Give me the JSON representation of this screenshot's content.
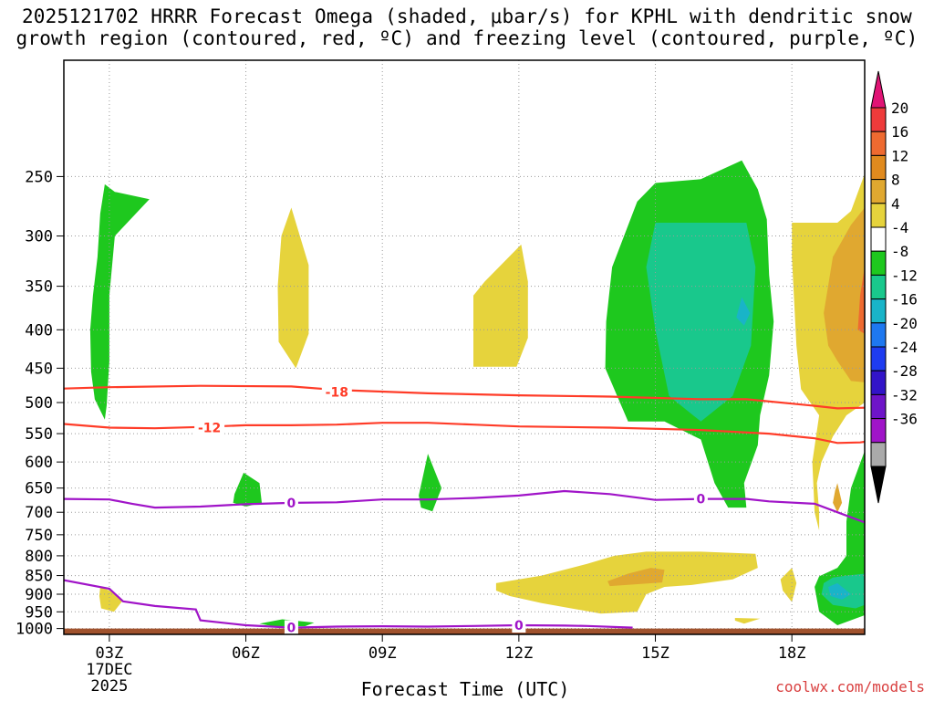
{
  "title": {
    "line1": "2025121702 HRRR Forecast Omega (shaded, μbar/s) for KPHL with dendritic snow",
    "line2": "growth region (contoured, red, ºC) and freezing level (contoured, purple, ºC)"
  },
  "credit": "coolwx.com/models",
  "chart_data": {
    "type": "contour",
    "xlabel": "Forecast Time (UTC)",
    "ylabel": "",
    "x_unit": "hour UTC",
    "x_range": [
      2.0,
      19.6
    ],
    "y_unit": "hPa",
    "y_range": [
      175,
      1018
    ],
    "y_scale": "log-pressure",
    "grid": true,
    "x_ticks": [
      {
        "value": 3,
        "label": "03Z",
        "sub1": "17DEC",
        "sub2": "2025"
      },
      {
        "value": 6,
        "label": "06Z"
      },
      {
        "value": 9,
        "label": "09Z"
      },
      {
        "value": 12,
        "label": "12Z"
      },
      {
        "value": 15,
        "label": "15Z"
      },
      {
        "value": 18,
        "label": "18Z"
      }
    ],
    "y_ticks": [
      {
        "value": 250,
        "label": "250"
      },
      {
        "value": 300,
        "label": "300"
      },
      {
        "value": 350,
        "label": "350"
      },
      {
        "value": 400,
        "label": "400"
      },
      {
        "value": 450,
        "label": "450"
      },
      {
        "value": 500,
        "label": "500"
      },
      {
        "value": 550,
        "label": "550"
      },
      {
        "value": 600,
        "label": "600"
      },
      {
        "value": 650,
        "label": "650"
      },
      {
        "value": 700,
        "label": "700"
      },
      {
        "value": 750,
        "label": "750"
      },
      {
        "value": 800,
        "label": "800"
      },
      {
        "value": 850,
        "label": "850"
      },
      {
        "value": 900,
        "label": "900"
      },
      {
        "value": 950,
        "label": "950"
      },
      {
        "value": 1000,
        "label": "1000"
      }
    ],
    "ground": {
      "color": "#a0522d",
      "p_top": 1000
    },
    "colorbar": {
      "labels": [
        "20",
        "16",
        "12",
        "8",
        "4",
        "-4",
        "-8",
        "-12",
        "-16",
        "-20",
        "-24",
        "-28",
        "-32",
        "-36"
      ],
      "colors": [
        "#e01475",
        "#ee3b3b",
        "#ee6a30",
        "#e08a1e",
        "#e0a830",
        "#e6d33c",
        "#ffffff",
        "#1ec81e",
        "#19c88c",
        "#19b4c8",
        "#1e78f0",
        "#1e3cf0",
        "#3214c8",
        "#6e14c8",
        "#a014c8",
        "#aaaaaa",
        "#000000"
      ]
    },
    "omega_regions": [
      {
        "level": "-4",
        "color": "#1ec81e",
        "points": [
          [
            2.9,
            527
          ],
          [
            2.68,
            495
          ],
          [
            2.6,
            455
          ],
          [
            2.58,
            400
          ],
          [
            2.64,
            360
          ],
          [
            2.74,
            320
          ],
          [
            2.8,
            280
          ],
          [
            2.9,
            256
          ],
          [
            3.12,
            262
          ],
          [
            3.88,
            268
          ],
          [
            3.12,
            300
          ],
          [
            3.0,
            360
          ],
          [
            3.0,
            440
          ],
          [
            2.94,
            505
          ]
        ]
      },
      {
        "level": "4",
        "color": "#e6d33c",
        "points": [
          [
            7.0,
            275
          ],
          [
            7.38,
            328
          ],
          [
            7.38,
            405
          ],
          [
            7.1,
            450
          ],
          [
            6.72,
            415
          ],
          [
            6.7,
            350
          ],
          [
            6.78,
            300
          ]
        ]
      },
      {
        "level": "4",
        "color": "#e6d33c",
        "points": [
          [
            11.0,
            448
          ],
          [
            11.95,
            448
          ],
          [
            12.2,
            410
          ],
          [
            12.2,
            345
          ],
          [
            12.05,
            308
          ],
          [
            11.25,
            345
          ],
          [
            11.0,
            360
          ]
        ]
      },
      {
        "level": "-4",
        "color": "#1ec81e",
        "points": [
          [
            16.9,
            238
          ],
          [
            17.25,
            260
          ],
          [
            17.45,
            285
          ],
          [
            17.5,
            338
          ],
          [
            17.6,
            390
          ],
          [
            17.5,
            460
          ],
          [
            17.3,
            520
          ],
          [
            17.25,
            570
          ],
          [
            16.95,
            640
          ],
          [
            17.0,
            690
          ],
          [
            16.6,
            690
          ],
          [
            16.3,
            640
          ],
          [
            16.0,
            560
          ],
          [
            15.2,
            530
          ],
          [
            14.4,
            530
          ],
          [
            13.9,
            450
          ],
          [
            13.92,
            390
          ],
          [
            14.05,
            330
          ],
          [
            14.6,
            270
          ],
          [
            15.0,
            255
          ],
          [
            16.0,
            252
          ]
        ]
      },
      {
        "level": "-8",
        "color": "#19c88c",
        "points": [
          [
            15.0,
            288
          ],
          [
            17.0,
            288
          ],
          [
            17.2,
            330
          ],
          [
            17.1,
            420
          ],
          [
            16.7,
            490
          ],
          [
            16.0,
            530
          ],
          [
            15.3,
            490
          ],
          [
            15.0,
            400
          ],
          [
            14.8,
            330
          ]
        ]
      },
      {
        "level": "-12",
        "color": "#19b4c8",
        "points": [
          [
            16.9,
            362
          ],
          [
            17.08,
            380
          ],
          [
            16.95,
            395
          ],
          [
            16.78,
            385
          ]
        ]
      },
      {
        "level": "4",
        "color": "#e6d33c",
        "points": [
          [
            18.0,
            288
          ],
          [
            19.0,
            288
          ],
          [
            19.3,
            278
          ],
          [
            19.6,
            248
          ],
          [
            19.6,
            500
          ],
          [
            19.2,
            520
          ],
          [
            18.9,
            555
          ],
          [
            18.65,
            600
          ],
          [
            18.55,
            640
          ],
          [
            18.6,
            700
          ],
          [
            18.6,
            740
          ],
          [
            18.5,
            700
          ],
          [
            18.45,
            600
          ],
          [
            18.6,
            520
          ],
          [
            18.2,
            480
          ],
          [
            18.1,
            420
          ],
          [
            18.0,
            320
          ]
        ]
      },
      {
        "level": "8",
        "color": "#e0a830",
        "points": [
          [
            18.7,
            380
          ],
          [
            18.9,
            320
          ],
          [
            19.3,
            290
          ],
          [
            19.6,
            275
          ],
          [
            19.6,
            470
          ],
          [
            19.3,
            468
          ],
          [
            19.0,
            440
          ],
          [
            18.8,
            420
          ]
        ]
      },
      {
        "level": "12",
        "color": "#ee6a30",
        "points": [
          [
            19.5,
            360
          ],
          [
            19.6,
            330
          ],
          [
            19.6,
            405
          ],
          [
            19.45,
            400
          ]
        ]
      },
      {
        "level": "8",
        "color": "#e0a830",
        "points": [
          [
            19.0,
            640
          ],
          [
            19.1,
            680
          ],
          [
            19.0,
            700
          ],
          [
            18.9,
            680
          ],
          [
            18.95,
            655
          ]
        ]
      },
      {
        "level": "-4",
        "color": "#1ec81e",
        "points": [
          [
            19.6,
            580
          ],
          [
            19.6,
            960
          ],
          [
            19.0,
            990
          ],
          [
            18.6,
            950
          ],
          [
            18.5,
            880
          ],
          [
            18.6,
            852
          ],
          [
            19.0,
            830
          ],
          [
            19.2,
            800
          ],
          [
            19.2,
            720
          ],
          [
            19.3,
            650
          ]
        ]
      },
      {
        "level": "-8",
        "color": "#19c88c",
        "points": [
          [
            19.2,
            850
          ],
          [
            19.6,
            845
          ],
          [
            19.6,
            930
          ],
          [
            19.4,
            940
          ],
          [
            18.9,
            930
          ],
          [
            18.65,
            900
          ],
          [
            18.7,
            870
          ],
          [
            18.9,
            855
          ]
        ]
      },
      {
        "level": "-12",
        "color": "#19b4c8",
        "points": [
          [
            18.8,
            880
          ],
          [
            19.0,
            870
          ],
          [
            19.3,
            900
          ],
          [
            19.1,
            915
          ],
          [
            18.85,
            905
          ]
        ]
      },
      {
        "level": "-4",
        "color": "#1ec81e",
        "points": [
          [
            5.75,
            662
          ],
          [
            5.95,
            620
          ],
          [
            6.3,
            640
          ],
          [
            6.35,
            680
          ],
          [
            6.0,
            688
          ],
          [
            5.72,
            680
          ]
        ]
      },
      {
        "level": "-4",
        "color": "#1ec81e",
        "points": [
          [
            9.8,
            665
          ],
          [
            10.0,
            585
          ],
          [
            10.3,
            650
          ],
          [
            10.1,
            698
          ],
          [
            9.85,
            690
          ]
        ]
      },
      {
        "level": "-4",
        "color": "#1ec81e",
        "points": [
          [
            6.3,
            985
          ],
          [
            6.8,
            972
          ],
          [
            7.5,
            982
          ],
          [
            7.3,
            993
          ],
          [
            6.6,
            993
          ]
        ]
      },
      {
        "level": "4",
        "color": "#e6d33c",
        "points": [
          [
            2.8,
            880
          ],
          [
            3.1,
            895
          ],
          [
            3.28,
            920
          ],
          [
            3.1,
            950
          ],
          [
            2.82,
            940
          ],
          [
            2.78,
            905
          ]
        ]
      },
      {
        "level": "4",
        "color": "#e6d33c",
        "points": [
          [
            11.5,
            870
          ],
          [
            12.5,
            850
          ],
          [
            13.5,
            820
          ],
          [
            14.1,
            800
          ],
          [
            14.8,
            790
          ],
          [
            16.0,
            790
          ],
          [
            17.2,
            795
          ],
          [
            17.25,
            830
          ],
          [
            16.7,
            860
          ],
          [
            15.8,
            875
          ],
          [
            15.2,
            880
          ],
          [
            14.8,
            900
          ],
          [
            14.6,
            950
          ],
          [
            13.8,
            955
          ],
          [
            12.5,
            925
          ],
          [
            11.8,
            905
          ],
          [
            11.5,
            890
          ]
        ]
      },
      {
        "level": "8",
        "color": "#e0a830",
        "points": [
          [
            13.95,
            865
          ],
          [
            14.4,
            845
          ],
          [
            14.9,
            830
          ],
          [
            15.2,
            835
          ],
          [
            15.15,
            868
          ],
          [
            14.0,
            878
          ]
        ]
      },
      {
        "level": "4",
        "color": "#e6d33c",
        "points": [
          [
            18.0,
            830
          ],
          [
            18.1,
            870
          ],
          [
            18.0,
            922
          ],
          [
            17.8,
            890
          ],
          [
            17.75,
            860
          ]
        ]
      },
      {
        "level": "4",
        "color": "#e6d33c",
        "points": [
          [
            16.75,
            968
          ],
          [
            17.3,
            970
          ],
          [
            16.95,
            985
          ],
          [
            16.75,
            976
          ]
        ]
      }
    ],
    "contours": [
      {
        "name": "-18",
        "color": "#ff3c28",
        "label": "-18",
        "label_at": [
          8.0,
          484
        ],
        "points": [
          [
            2.0,
            479
          ],
          [
            3.0,
            477
          ],
          [
            5.0,
            475
          ],
          [
            7.0,
            476
          ],
          [
            8.0,
            481
          ],
          [
            10.0,
            486
          ],
          [
            12.0,
            489
          ],
          [
            14.0,
            491
          ],
          [
            16.0,
            495
          ],
          [
            17.0,
            495
          ],
          [
            18.5,
            505
          ],
          [
            19.0,
            509
          ],
          [
            19.6,
            508
          ]
        ]
      },
      {
        "name": "-12",
        "color": "#ff3c28",
        "label": "-12",
        "label_at": [
          5.2,
          540
        ],
        "points": [
          [
            2.0,
            534
          ],
          [
            3.0,
            540
          ],
          [
            4.0,
            541
          ],
          [
            5.0,
            539
          ],
          [
            6.0,
            536
          ],
          [
            7.0,
            536
          ],
          [
            8.0,
            535
          ],
          [
            9.0,
            532
          ],
          [
            10.0,
            532
          ],
          [
            11.0,
            535
          ],
          [
            12.0,
            538
          ],
          [
            14.0,
            540
          ],
          [
            16.0,
            544
          ],
          [
            17.5,
            550
          ],
          [
            18.5,
            558
          ],
          [
            19.0,
            566
          ],
          [
            19.5,
            565
          ],
          [
            19.6,
            564
          ]
        ]
      },
      {
        "name": "0",
        "color": "#a014c8",
        "label": "0",
        "label_at": [
          7.0,
          680
        ],
        "points": [
          [
            2.0,
            672
          ],
          [
            3.0,
            673
          ],
          [
            3.5,
            682
          ],
          [
            4.0,
            690
          ],
          [
            5.0,
            688
          ],
          [
            6.0,
            683
          ],
          [
            7.0,
            680
          ],
          [
            8.0,
            679
          ],
          [
            9.0,
            673
          ],
          [
            10.0,
            673
          ],
          [
            11.0,
            670
          ],
          [
            12.0,
            665
          ],
          [
            13.0,
            656
          ],
          [
            14.0,
            662
          ],
          [
            15.0,
            674
          ],
          [
            16.0,
            672
          ],
          [
            17.0,
            672
          ],
          [
            17.5,
            677
          ],
          [
            18.5,
            682
          ],
          [
            19.0,
            700
          ],
          [
            19.6,
            722
          ]
        ]
      },
      {
        "name": "0",
        "color": "#a014c8",
        "label": "0",
        "label_at": [
          7.0,
          997
        ],
        "points": [
          [
            2.0,
            862
          ],
          [
            3.0,
            885
          ],
          [
            3.3,
            920
          ],
          [
            4.0,
            933
          ],
          [
            4.9,
            943
          ],
          [
            5.0,
            975
          ],
          [
            6.0,
            990
          ],
          [
            7.0,
            997
          ],
          [
            8.0,
            994
          ],
          [
            9.0,
            993
          ],
          [
            10.0,
            994
          ],
          [
            11.0,
            992
          ],
          [
            12.0,
            990
          ],
          [
            13.0,
            991
          ],
          [
            13.5,
            992
          ],
          [
            14.5,
            997
          ]
        ]
      },
      {
        "name": "0",
        "color": "#a014c8",
        "label": "0",
        "label_at": [
          12.0,
          990
        ],
        "points": []
      },
      {
        "name": "0",
        "color": "#a014c8",
        "label": "0",
        "label_at": [
          16.0,
          672
        ],
        "points": []
      }
    ]
  }
}
